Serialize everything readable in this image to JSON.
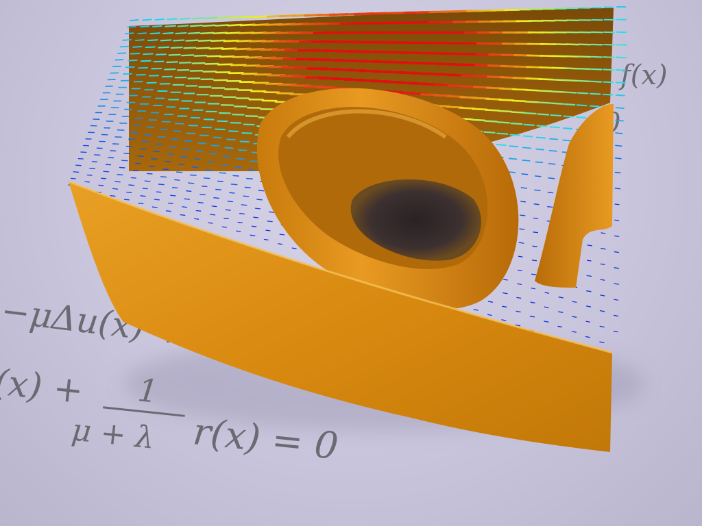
{
  "equations": {
    "eq1_right": "f(x)",
    "eq1_zero": "0",
    "eq2": "−μΔu(x) + ∇r(x) = f(x)",
    "eq3_left": "(x) +",
    "fraction_numerator": "1",
    "fraction_denominator": "μ + λ",
    "eq3_right": "r(x) = 0"
  },
  "colors": {
    "background": "#c9c5dc",
    "surface": "#e0900e",
    "surface_dark": "#a85f08",
    "surface_light": "#f2b440",
    "equation_ink": "#6a6a72",
    "field_low": "#1020e0",
    "field_mid": "#20e0f0",
    "field_high_mid": "#f0f020",
    "field_high": "#e01010"
  }
}
